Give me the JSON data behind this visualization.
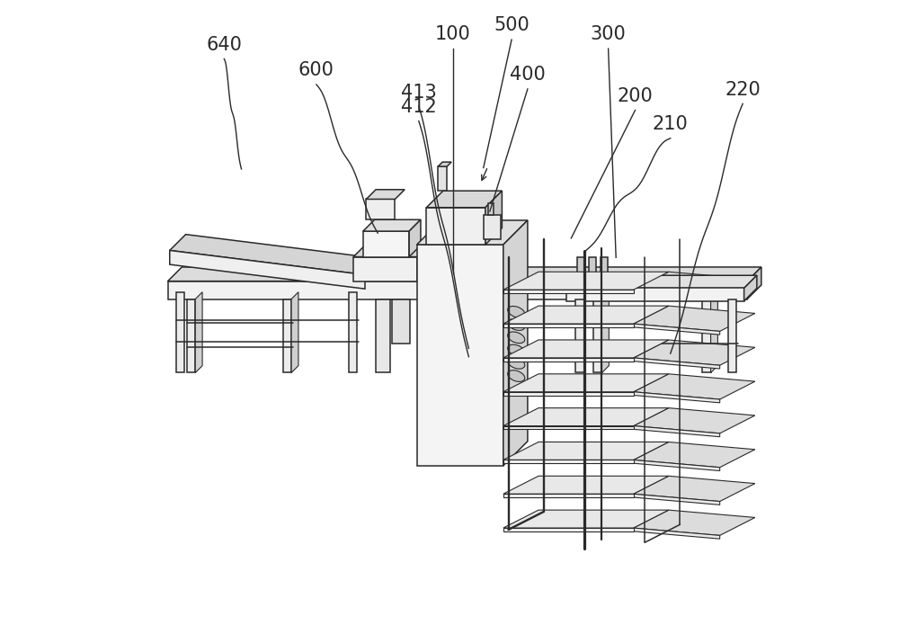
{
  "bg_color": "#ffffff",
  "line_color": "#2a2a2a",
  "light_fill": "#e8e8e8",
  "mid_fill": "#cccccc",
  "dark_fill": "#aaaaaa",
  "label_fontsize": 15,
  "figsize": [
    10.0,
    7.15
  ],
  "dpi": 100
}
